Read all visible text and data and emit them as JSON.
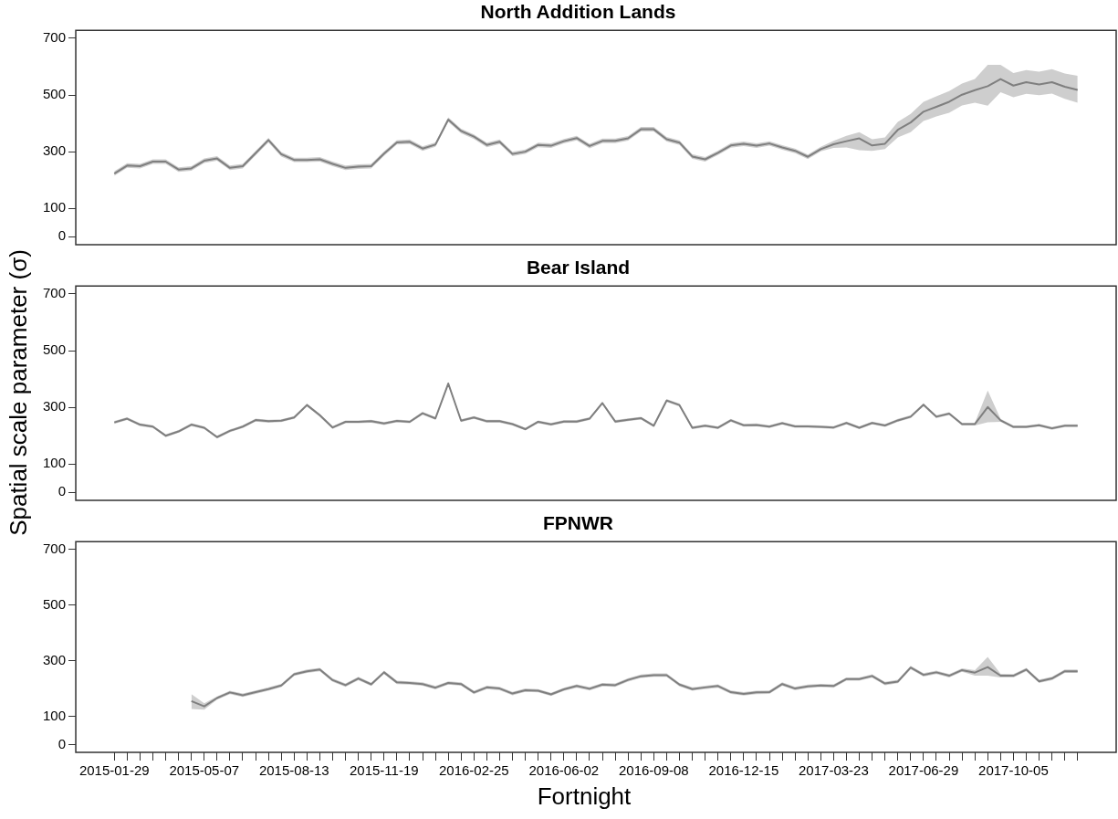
{
  "chart_data": [
    {
      "type": "line",
      "title": "North Addition Lands",
      "tick_labels": "y",
      "yticks": [
        0,
        100,
        300,
        500,
        700
      ],
      "categories": [
        "2015-01-29",
        null,
        null,
        null,
        null,
        null,
        null,
        "2015-05-07",
        null,
        null,
        null,
        null,
        null,
        null,
        "2015-08-13",
        null,
        null,
        null,
        null,
        null,
        null,
        "2015-11-19",
        null,
        null,
        null,
        null,
        null,
        null,
        "2016-02-25",
        null,
        null,
        null,
        null,
        null,
        null,
        "2016-06-02",
        null,
        null,
        null,
        null,
        null,
        null,
        "2016-09-08",
        null,
        null,
        null,
        null,
        null,
        null,
        "2016-12-15",
        null,
        null,
        null,
        null,
        null,
        null,
        "2017-03-23",
        null,
        null,
        null,
        null,
        null,
        null,
        "2017-06-29",
        null,
        null,
        null,
        null,
        null,
        null,
        "2017-10-05",
        null,
        null,
        null,
        null,
        null
      ],
      "ylim": [
        -28,
        728
      ],
      "series": [
        {
          "color": "#7f7f7f",
          "values": [
            223,
            251,
            249,
            265,
            265,
            237,
            241,
            268,
            276,
            243,
            249,
            295,
            341,
            291,
            271,
            271,
            273,
            257,
            243,
            247,
            249,
            293,
            333,
            335,
            311,
            325,
            413,
            373,
            353,
            324,
            335,
            292,
            300,
            324,
            321,
            337,
            348,
            320,
            338,
            338,
            347,
            379,
            379,
            344,
            332,
            283,
            273,
            296,
            322,
            328,
            321,
            329,
            315,
            303,
            282,
            309,
            326,
            337,
            347,
            322,
            328,
            377,
            403,
            441,
            458,
            476,
            501,
            517,
            531,
            556,
            533,
            545,
            537,
            545,
            529,
            518
          ],
          "lower": [
            215,
            243,
            241,
            257,
            257,
            229,
            233,
            260,
            268,
            235,
            241,
            287,
            333,
            283,
            263,
            263,
            265,
            249,
            235,
            239,
            241,
            285,
            325,
            327,
            303,
            317,
            405,
            365,
            345,
            316,
            327,
            284,
            292,
            316,
            313,
            329,
            340,
            312,
            330,
            330,
            339,
            371,
            371,
            336,
            324,
            275,
            265,
            288,
            314,
            320,
            313,
            321,
            307,
            295,
            274,
            301,
            313,
            315,
            305,
            303,
            309,
            350,
            369,
            408,
            424,
            437,
            463,
            473,
            462,
            510,
            492,
            504,
            499,
            505,
            486,
            473
          ],
          "upper": [
            231,
            259,
            257,
            273,
            273,
            245,
            249,
            276,
            284,
            251,
            257,
            303,
            349,
            299,
            279,
            279,
            281,
            265,
            251,
            255,
            257,
            301,
            341,
            343,
            319,
            333,
            421,
            381,
            361,
            332,
            343,
            300,
            308,
            332,
            329,
            345,
            356,
            328,
            346,
            346,
            355,
            387,
            387,
            352,
            340,
            291,
            281,
            304,
            330,
            336,
            329,
            337,
            323,
            311,
            290,
            317,
            338,
            356,
            369,
            344,
            350,
            405,
            433,
            476,
            495,
            514,
            540,
            556,
            606,
            606,
            577,
            588,
            582,
            591,
            576,
            568
          ]
        }
      ]
    },
    {
      "type": "line",
      "title": "Bear Island",
      "ylabel": "Spatial scale parameter (σ)",
      "tick_labels": "y",
      "yticks": [
        0,
        100,
        300,
        500,
        700
      ],
      "categories": [
        "2015-01-29",
        null,
        null,
        null,
        null,
        null,
        null,
        "2015-05-07",
        null,
        null,
        null,
        null,
        null,
        null,
        "2015-08-13",
        null,
        null,
        null,
        null,
        null,
        null,
        "2015-11-19",
        null,
        null,
        null,
        null,
        null,
        null,
        "2016-02-25",
        null,
        null,
        null,
        null,
        null,
        null,
        "2016-06-02",
        null,
        null,
        null,
        null,
        null,
        null,
        "2016-09-08",
        null,
        null,
        null,
        null,
        null,
        null,
        "2016-12-15",
        null,
        null,
        null,
        null,
        null,
        null,
        "2017-03-23",
        null,
        null,
        null,
        null,
        null,
        null,
        "2017-06-29",
        null,
        null,
        null,
        null,
        null,
        null,
        "2017-10-05",
        null,
        null,
        null,
        null,
        null
      ],
      "ylim": [
        -28,
        728
      ],
      "series": [
        {
          "color": "#7f7f7f",
          "values": [
            247,
            260,
            239,
            232,
            200,
            215,
            239,
            228,
            195,
            217,
            232,
            255,
            251,
            253,
            264,
            308,
            272,
            229,
            249,
            249,
            251,
            243,
            252,
            249,
            279,
            261,
            384,
            253,
            264,
            251,
            251,
            241,
            223,
            249,
            240,
            250,
            250,
            260,
            315,
            250,
            256,
            262,
            235,
            324,
            308,
            228,
            235,
            228,
            254,
            237,
            238,
            232,
            244,
            233,
            233,
            231,
            229,
            245,
            228,
            245,
            236,
            254,
            267,
            309,
            267,
            278,
            241,
            241,
            301,
            254,
            231,
            231,
            237,
            226,
            235,
            235
          ],
          "lower": [
            242,
            255,
            234,
            227,
            195,
            210,
            234,
            223,
            190,
            212,
            227,
            250,
            246,
            248,
            259,
            303,
            267,
            224,
            244,
            244,
            246,
            238,
            247,
            244,
            274,
            256,
            379,
            248,
            259,
            246,
            246,
            236,
            218,
            244,
            235,
            245,
            245,
            255,
            310,
            245,
            251,
            257,
            230,
            319,
            303,
            223,
            230,
            223,
            249,
            232,
            233,
            227,
            239,
            228,
            228,
            226,
            224,
            240,
            223,
            240,
            231,
            249,
            262,
            304,
            262,
            273,
            236,
            236,
            247,
            249,
            226,
            226,
            232,
            221,
            230,
            230
          ],
          "upper": [
            252,
            265,
            244,
            237,
            205,
            220,
            244,
            233,
            200,
            222,
            237,
            260,
            256,
            258,
            269,
            313,
            277,
            234,
            254,
            254,
            256,
            248,
            257,
            254,
            284,
            266,
            389,
            258,
            269,
            256,
            256,
            246,
            228,
            254,
            245,
            255,
            255,
            265,
            320,
            255,
            261,
            267,
            240,
            329,
            313,
            233,
            240,
            233,
            259,
            242,
            243,
            237,
            249,
            238,
            238,
            236,
            234,
            250,
            233,
            250,
            241,
            259,
            272,
            314,
            272,
            283,
            246,
            246,
            359,
            259,
            236,
            236,
            242,
            231,
            240,
            240
          ]
        }
      ]
    },
    {
      "type": "line",
      "title": "FPNWR",
      "xlabel": "Fortnight",
      "yticks": [
        0,
        100,
        300,
        500,
        700
      ],
      "categories": [
        "2015-01-29",
        null,
        null,
        null,
        null,
        null,
        null,
        "2015-05-07",
        null,
        null,
        null,
        null,
        null,
        null,
        "2015-08-13",
        null,
        null,
        null,
        null,
        null,
        null,
        "2015-11-19",
        null,
        null,
        null,
        null,
        null,
        null,
        "2016-02-25",
        null,
        null,
        null,
        null,
        null,
        null,
        "2016-06-02",
        null,
        null,
        null,
        null,
        null,
        null,
        "2016-09-08",
        null,
        null,
        null,
        null,
        null,
        null,
        "2016-12-15",
        null,
        null,
        null,
        null,
        null,
        null,
        "2017-03-23",
        null,
        null,
        null,
        null,
        null,
        null,
        "2017-06-29",
        null,
        null,
        null,
        null,
        null,
        null,
        "2017-10-05",
        null,
        null,
        null,
        null,
        null
      ],
      "ylim": [
        -28,
        728
      ],
      "series": [
        {
          "color": "#7f7f7f",
          "values": [
            null,
            null,
            null,
            null,
            null,
            null,
            156,
            137,
            167,
            187,
            177,
            188,
            199,
            212,
            252,
            263,
            269,
            231,
            213,
            237,
            216,
            259,
            223,
            221,
            217,
            204,
            221,
            217,
            187,
            205,
            201,
            183,
            195,
            193,
            180,
            198,
            210,
            200,
            215,
            213,
            232,
            245,
            249,
            249,
            215,
            199,
            205,
            210,
            188,
            182,
            187,
            188,
            217,
            201,
            209,
            212,
            210,
            235,
            235,
            246,
            219,
            226,
            276,
            250,
            259,
            247,
            267,
            258,
            278,
            247,
            247,
            269,
            227,
            237,
            263,
            263
          ],
          "lower": [
            null,
            null,
            null,
            null,
            null,
            null,
            128,
            125,
            161,
            181,
            171,
            182,
            193,
            206,
            246,
            257,
            263,
            225,
            207,
            231,
            210,
            253,
            217,
            215,
            211,
            198,
            215,
            211,
            181,
            199,
            195,
            177,
            189,
            187,
            174,
            192,
            204,
            194,
            209,
            207,
            226,
            239,
            243,
            243,
            209,
            193,
            199,
            204,
            182,
            176,
            181,
            182,
            211,
            195,
            203,
            206,
            204,
            229,
            229,
            240,
            213,
            220,
            270,
            244,
            253,
            241,
            261,
            247,
            247,
            241,
            241,
            263,
            221,
            231,
            257,
            257
          ],
          "upper": [
            null,
            null,
            null,
            null,
            null,
            null,
            181,
            148,
            173,
            193,
            183,
            194,
            205,
            218,
            258,
            269,
            275,
            237,
            219,
            243,
            222,
            265,
            229,
            227,
            223,
            210,
            227,
            223,
            193,
            211,
            207,
            189,
            201,
            199,
            186,
            204,
            216,
            206,
            221,
            219,
            238,
            251,
            255,
            255,
            221,
            205,
            211,
            216,
            194,
            188,
            193,
            194,
            223,
            207,
            215,
            218,
            216,
            241,
            241,
            252,
            225,
            232,
            282,
            256,
            265,
            253,
            273,
            267,
            314,
            254,
            253,
            275,
            233,
            243,
            269,
            269
          ]
        }
      ]
    }
  ]
}
